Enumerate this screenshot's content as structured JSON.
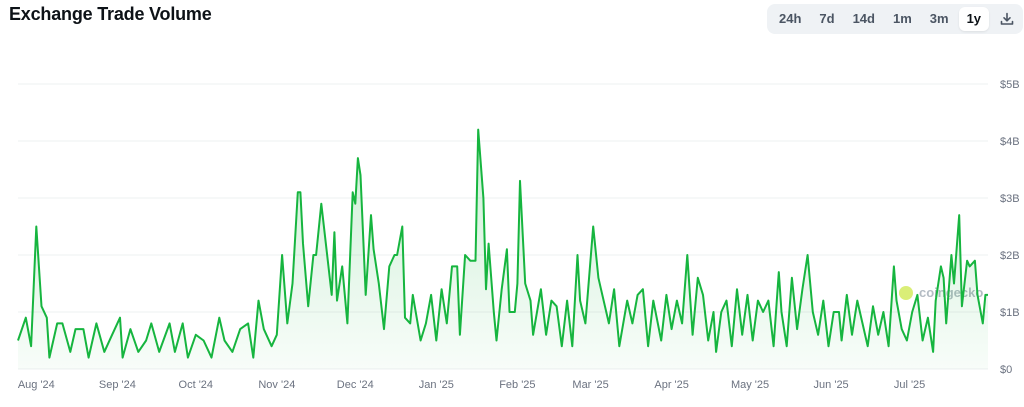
{
  "header": {
    "title": "Exchange Trade Volume"
  },
  "toolbar": {
    "ranges": [
      "24h",
      "7d",
      "14d",
      "1m",
      "3m",
      "1y"
    ],
    "active": "1y",
    "download_icon": "download-icon"
  },
  "watermark": "coingecko",
  "colors": {
    "line": "#16b53f",
    "fill": "#16b53f",
    "grid": "#eef0f2"
  },
  "chart_data": {
    "type": "area",
    "title": "",
    "xlabel": "",
    "ylabel": "",
    "x_range": [
      "2024-07-25",
      "2025-07-31"
    ],
    "ylim": [
      0,
      5000000000
    ],
    "y_ticks": [
      "$0",
      "$1B",
      "$2B",
      "$3B",
      "$4B",
      "$5B"
    ],
    "x_ticks": [
      {
        "date": "2024-08-01",
        "label": "Aug '24"
      },
      {
        "date": "2024-09-01",
        "label": "Sep '24"
      },
      {
        "date": "2024-10-01",
        "label": "Oct '24"
      },
      {
        "date": "2024-11-01",
        "label": "Nov '24"
      },
      {
        "date": "2024-12-01",
        "label": "Dec '24"
      },
      {
        "date": "2025-01-01",
        "label": "Jan '25"
      },
      {
        "date": "2025-02-01",
        "label": "Feb '25"
      },
      {
        "date": "2025-03-01",
        "label": "Mar '25"
      },
      {
        "date": "2025-04-01",
        "label": "Apr '25"
      },
      {
        "date": "2025-05-01",
        "label": "May '25"
      },
      {
        "date": "2025-06-01",
        "label": "Jun '25"
      },
      {
        "date": "2025-07-01",
        "label": "Jul '25"
      }
    ],
    "grid": true,
    "legend": "none",
    "unit": "billion USD",
    "points": [
      [
        "2024-07-25",
        0.5
      ],
      [
        "2024-07-28",
        0.9
      ],
      [
        "2024-07-30",
        0.4
      ],
      [
        "2024-08-01",
        2.5
      ],
      [
        "2024-08-03",
        1.1
      ],
      [
        "2024-08-05",
        0.9
      ],
      [
        "2024-08-06",
        0.2
      ],
      [
        "2024-08-09",
        0.8
      ],
      [
        "2024-08-11",
        0.8
      ],
      [
        "2024-08-14",
        0.3
      ],
      [
        "2024-08-16",
        0.7
      ],
      [
        "2024-08-19",
        0.7
      ],
      [
        "2024-08-21",
        0.2
      ],
      [
        "2024-08-24",
        0.8
      ],
      [
        "2024-08-27",
        0.3
      ],
      [
        "2024-08-30",
        0.6
      ],
      [
        "2024-09-02",
        0.9
      ],
      [
        "2024-09-03",
        0.2
      ],
      [
        "2024-09-06",
        0.7
      ],
      [
        "2024-09-09",
        0.3
      ],
      [
        "2024-09-12",
        0.5
      ],
      [
        "2024-09-14",
        0.8
      ],
      [
        "2024-09-17",
        0.3
      ],
      [
        "2024-09-21",
        0.8
      ],
      [
        "2024-09-23",
        0.3
      ],
      [
        "2024-09-26",
        0.8
      ],
      [
        "2024-09-28",
        0.2
      ],
      [
        "2024-10-01",
        0.6
      ],
      [
        "2024-10-04",
        0.5
      ],
      [
        "2024-10-07",
        0.2
      ],
      [
        "2024-10-10",
        0.9
      ],
      [
        "2024-10-12",
        0.5
      ],
      [
        "2024-10-15",
        0.3
      ],
      [
        "2024-10-18",
        0.7
      ],
      [
        "2024-10-21",
        0.8
      ],
      [
        "2024-10-23",
        0.2
      ],
      [
        "2024-10-25",
        1.2
      ],
      [
        "2024-10-27",
        0.7
      ],
      [
        "2024-10-30",
        0.4
      ],
      [
        "2024-11-01",
        0.6
      ],
      [
        "2024-11-03",
        2.0
      ],
      [
        "2024-11-05",
        0.8
      ],
      [
        "2024-11-07",
        1.5
      ],
      [
        "2024-11-09",
        3.1
      ],
      [
        "2024-11-10",
        3.1
      ],
      [
        "2024-11-11",
        2.2
      ],
      [
        "2024-11-13",
        1.1
      ],
      [
        "2024-11-15",
        2.0
      ],
      [
        "2024-11-16",
        2.0
      ],
      [
        "2024-11-18",
        2.9
      ],
      [
        "2024-11-20",
        2.1
      ],
      [
        "2024-11-22",
        1.3
      ],
      [
        "2024-11-23",
        2.4
      ],
      [
        "2024-11-24",
        1.2
      ],
      [
        "2024-11-26",
        1.8
      ],
      [
        "2024-11-28",
        0.8
      ],
      [
        "2024-11-30",
        3.1
      ],
      [
        "2024-12-01",
        2.9
      ],
      [
        "2024-12-02",
        3.7
      ],
      [
        "2024-12-03",
        3.4
      ],
      [
        "2024-12-05",
        1.3
      ],
      [
        "2024-12-07",
        2.7
      ],
      [
        "2024-12-08",
        2.1
      ],
      [
        "2024-12-10",
        1.5
      ],
      [
        "2024-12-12",
        0.7
      ],
      [
        "2024-12-14",
        1.8
      ],
      [
        "2024-12-16",
        2.0
      ],
      [
        "2024-12-17",
        2.0
      ],
      [
        "2024-12-19",
        2.5
      ],
      [
        "2024-12-20",
        0.9
      ],
      [
        "2024-12-22",
        0.8
      ],
      [
        "2024-12-23",
        1.3
      ],
      [
        "2024-12-26",
        0.5
      ],
      [
        "2024-12-28",
        0.8
      ],
      [
        "2024-12-30",
        1.3
      ],
      [
        "2025-01-01",
        0.5
      ],
      [
        "2025-01-03",
        1.4
      ],
      [
        "2025-01-05",
        0.8
      ],
      [
        "2025-01-07",
        1.8
      ],
      [
        "2025-01-09",
        1.8
      ],
      [
        "2025-01-10",
        0.6
      ],
      [
        "2025-01-12",
        2.0
      ],
      [
        "2025-01-14",
        1.9
      ],
      [
        "2025-01-16",
        1.9
      ],
      [
        "2025-01-17",
        4.2
      ],
      [
        "2025-01-19",
        3.0
      ],
      [
        "2025-01-20",
        1.4
      ],
      [
        "2025-01-21",
        2.2
      ],
      [
        "2025-01-23",
        1.0
      ],
      [
        "2025-01-24",
        0.5
      ],
      [
        "2025-01-26",
        1.4
      ],
      [
        "2025-01-28",
        2.1
      ],
      [
        "2025-01-29",
        1.0
      ],
      [
        "2025-01-31",
        1.0
      ],
      [
        "2025-02-01",
        1.5
      ],
      [
        "2025-02-02",
        3.3
      ],
      [
        "2025-02-04",
        1.5
      ],
      [
        "2025-02-06",
        1.2
      ],
      [
        "2025-02-07",
        0.6
      ],
      [
        "2025-02-10",
        1.4
      ],
      [
        "2025-02-12",
        0.6
      ],
      [
        "2025-02-14",
        1.2
      ],
      [
        "2025-02-16",
        1.1
      ],
      [
        "2025-02-18",
        0.4
      ],
      [
        "2025-02-20",
        1.2
      ],
      [
        "2025-02-22",
        0.4
      ],
      [
        "2025-02-24",
        2.0
      ],
      [
        "2025-02-25",
        1.2
      ],
      [
        "2025-02-27",
        0.8
      ],
      [
        "2025-03-02",
        2.5
      ],
      [
        "2025-03-04",
        1.6
      ],
      [
        "2025-03-05",
        1.4
      ],
      [
        "2025-03-08",
        0.8
      ],
      [
        "2025-03-10",
        1.4
      ],
      [
        "2025-03-12",
        0.4
      ],
      [
        "2025-03-15",
        1.2
      ],
      [
        "2025-03-17",
        0.8
      ],
      [
        "2025-03-19",
        1.3
      ],
      [
        "2025-03-21",
        1.4
      ],
      [
        "2025-03-23",
        0.4
      ],
      [
        "2025-03-25",
        1.2
      ],
      [
        "2025-03-28",
        0.5
      ],
      [
        "2025-03-30",
        1.3
      ],
      [
        "2025-04-01",
        0.7
      ],
      [
        "2025-04-03",
        1.2
      ],
      [
        "2025-04-05",
        0.8
      ],
      [
        "2025-04-07",
        2.0
      ],
      [
        "2025-04-09",
        0.6
      ],
      [
        "2025-04-11",
        1.6
      ],
      [
        "2025-04-13",
        1.3
      ],
      [
        "2025-04-15",
        0.5
      ],
      [
        "2025-04-17",
        1.0
      ],
      [
        "2025-04-18",
        0.3
      ],
      [
        "2025-04-20",
        1.0
      ],
      [
        "2025-04-22",
        1.2
      ],
      [
        "2025-04-24",
        0.4
      ],
      [
        "2025-04-26",
        1.4
      ],
      [
        "2025-04-28",
        0.6
      ],
      [
        "2025-04-30",
        1.3
      ],
      [
        "2025-05-02",
        0.5
      ],
      [
        "2025-05-04",
        1.2
      ],
      [
        "2025-05-06",
        1.0
      ],
      [
        "2025-05-08",
        1.2
      ],
      [
        "2025-05-10",
        0.4
      ],
      [
        "2025-05-12",
        1.7
      ],
      [
        "2025-05-13",
        1.0
      ],
      [
        "2025-05-15",
        0.4
      ],
      [
        "2025-05-17",
        1.6
      ],
      [
        "2025-05-19",
        0.7
      ],
      [
        "2025-05-21",
        1.4
      ],
      [
        "2025-05-23",
        2.0
      ],
      [
        "2025-05-25",
        1.0
      ],
      [
        "2025-05-27",
        0.6
      ],
      [
        "2025-05-29",
        1.2
      ],
      [
        "2025-05-31",
        0.4
      ],
      [
        "2025-06-02",
        1.0
      ],
      [
        "2025-06-04",
        1.0
      ],
      [
        "2025-06-05",
        0.5
      ],
      [
        "2025-06-07",
        1.3
      ],
      [
        "2025-06-09",
        0.6
      ],
      [
        "2025-06-11",
        1.2
      ],
      [
        "2025-06-13",
        0.8
      ],
      [
        "2025-06-15",
        0.4
      ],
      [
        "2025-06-17",
        1.1
      ],
      [
        "2025-06-19",
        0.6
      ],
      [
        "2025-06-21",
        1.0
      ],
      [
        "2025-06-23",
        0.4
      ],
      [
        "2025-06-25",
        1.8
      ],
      [
        "2025-06-26",
        1.2
      ],
      [
        "2025-06-28",
        0.7
      ],
      [
        "2025-06-30",
        0.5
      ],
      [
        "2025-07-02",
        1.0
      ],
      [
        "2025-07-04",
        1.3
      ],
      [
        "2025-07-06",
        0.5
      ],
      [
        "2025-07-08",
        0.9
      ],
      [
        "2025-07-10",
        0.3
      ],
      [
        "2025-07-11",
        1.2
      ],
      [
        "2025-07-13",
        1.8
      ],
      [
        "2025-07-14",
        1.6
      ],
      [
        "2025-07-15",
        0.8
      ],
      [
        "2025-07-17",
        2.0
      ],
      [
        "2025-07-18",
        1.5
      ],
      [
        "2025-07-20",
        2.7
      ],
      [
        "2025-07-21",
        1.1
      ],
      [
        "2025-07-23",
        1.9
      ],
      [
        "2025-07-24",
        1.8
      ],
      [
        "2025-07-26",
        1.9
      ],
      [
        "2025-07-27",
        1.3
      ],
      [
        "2025-07-29",
        0.8
      ],
      [
        "2025-07-30",
        1.3
      ],
      [
        "2025-07-31",
        1.3
      ]
    ]
  }
}
